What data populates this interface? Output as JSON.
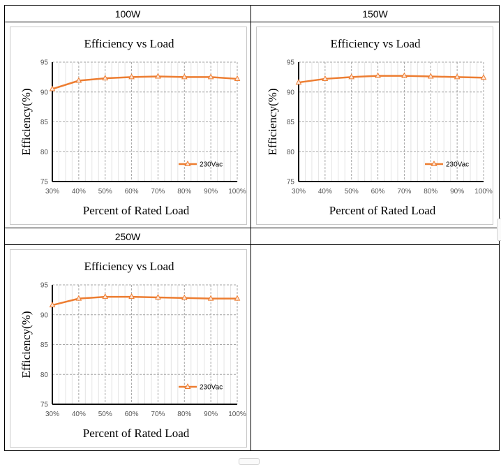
{
  "colors": {
    "series": "#ED7D31",
    "grid": "#A6A6A6",
    "axis": "#000000"
  },
  "panels": [
    {
      "header": "100W"
    },
    {
      "header": "150W"
    },
    {
      "header": "250W"
    },
    {
      "header": ""
    }
  ],
  "chart_data": [
    {
      "type": "line",
      "title": "Efficiency vs Load",
      "xlabel": "Percent of Rated Load",
      "ylabel": "Efficiency(%)",
      "categories": [
        "30%",
        "40%",
        "50%",
        "60%",
        "70%",
        "80%",
        "90%",
        "100%"
      ],
      "series": [
        {
          "name": "230Vac",
          "values": [
            90.5,
            91.9,
            92.3,
            92.5,
            92.6,
            92.5,
            92.5,
            92.2
          ]
        }
      ],
      "yticks": [
        "75",
        "80",
        "85",
        "90",
        "95"
      ],
      "ylim": [
        75,
        95
      ],
      "grid": true,
      "legend": "right"
    },
    {
      "type": "line",
      "title": "Efficiency vs Load",
      "xlabel": "Percent of Rated Load",
      "ylabel": "Efficiency(%)",
      "categories": [
        "30%",
        "40%",
        "50%",
        "60%",
        "70%",
        "80%",
        "90%",
        "100%"
      ],
      "series": [
        {
          "name": "230Vac",
          "values": [
            91.6,
            92.2,
            92.5,
            92.7,
            92.7,
            92.6,
            92.5,
            92.4
          ]
        }
      ],
      "yticks": [
        "75",
        "80",
        "85",
        "90",
        "95"
      ],
      "ylim": [
        75,
        95
      ],
      "grid": true,
      "legend": "right"
    },
    {
      "type": "line",
      "title": "Efficiency vs Load",
      "xlabel": "Percent of Rated Load",
      "ylabel": "Efficiency(%)",
      "categories": [
        "30%",
        "40%",
        "50%",
        "60%",
        "70%",
        "80%",
        "90%",
        "100%"
      ],
      "series": [
        {
          "name": "230Vac",
          "values": [
            91.6,
            92.7,
            93.0,
            93.0,
            92.9,
            92.8,
            92.7,
            92.7
          ]
        }
      ],
      "yticks": [
        "75",
        "80",
        "85",
        "90",
        "95"
      ],
      "ylim": [
        75,
        95
      ],
      "grid": true,
      "legend": "right"
    }
  ]
}
